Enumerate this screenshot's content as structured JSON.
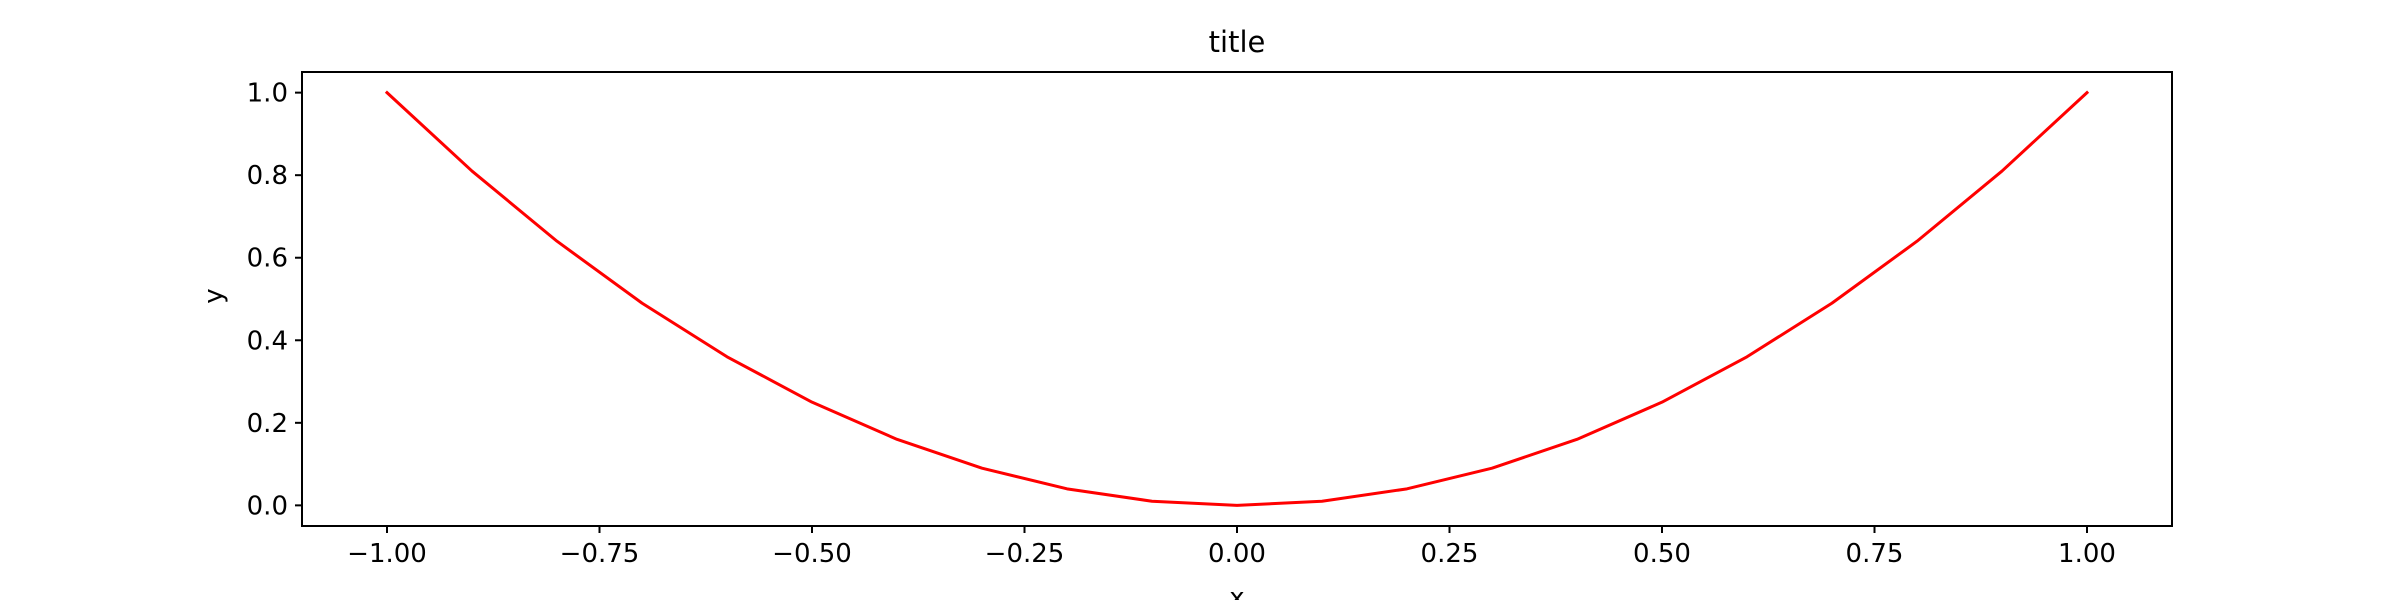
{
  "chart_data": {
    "type": "line",
    "title": "title",
    "xlabel": "x",
    "ylabel": "y",
    "xlim": [
      -1.1,
      1.1
    ],
    "ylim": [
      -0.05,
      1.05
    ],
    "xticks": [
      -1.0,
      -0.75,
      -0.5,
      -0.25,
      0.0,
      0.25,
      0.5,
      0.75,
      1.0
    ],
    "xtick_labels": [
      "−1.00",
      "−0.75",
      "−0.50",
      "−0.25",
      "0.00",
      "0.25",
      "0.50",
      "0.75",
      "1.00"
    ],
    "yticks": [
      0.0,
      0.2,
      0.4,
      0.6,
      0.8,
      1.0
    ],
    "ytick_labels": [
      "0.0",
      "0.2",
      "0.4",
      "0.6",
      "0.8",
      "1.0"
    ],
    "grid": false,
    "series": [
      {
        "color": "#ff0000",
        "x": [
          -1.0,
          -0.9,
          -0.8,
          -0.7,
          -0.6,
          -0.5,
          -0.4,
          -0.3,
          -0.2,
          -0.1,
          0.0,
          0.1,
          0.2,
          0.3,
          0.4,
          0.5,
          0.6,
          0.7,
          0.8,
          0.9,
          1.0
        ],
        "y": [
          1.0,
          0.81,
          0.64,
          0.49,
          0.36,
          0.25,
          0.16,
          0.09,
          0.04,
          0.01,
          0.0,
          0.01,
          0.04,
          0.09,
          0.16,
          0.25,
          0.36,
          0.49,
          0.64,
          0.81,
          1.0
        ]
      }
    ]
  }
}
